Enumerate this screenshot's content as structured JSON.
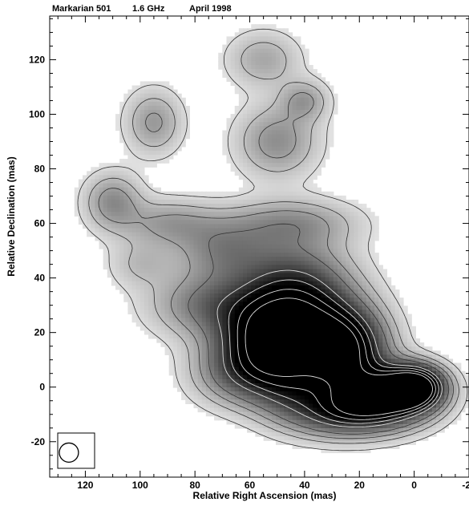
{
  "chart_data": {
    "type": "heatmap",
    "title_parts": [
      "Markarian 501",
      "1.6 GHz",
      "April 1998"
    ],
    "xlabel": "Relative Right Ascension (mas)",
    "ylabel": "Relative Declination (mas)",
    "xlim": [
      133,
      -20
    ],
    "ylim": [
      -33,
      136
    ],
    "x_ticks": [
      120,
      100,
      80,
      60,
      40,
      20,
      0,
      -20
    ],
    "y_ticks": [
      -20,
      0,
      20,
      40,
      60,
      80,
      100,
      120
    ],
    "x_tick_labels": [
      "120",
      "100",
      "80",
      "60",
      "40",
      "20",
      "0",
      "-20"
    ],
    "y_tick_labels": [
      "-20",
      "0",
      "20",
      "40",
      "60",
      "80",
      "100",
      "120"
    ],
    "grid": false,
    "colormap": "grayscale",
    "beam": {
      "x": 126,
      "y": -24,
      "diameter_mas": 7
    },
    "components": [
      {
        "x": 0,
        "y": 0,
        "intensity": 1.0,
        "sx": 7,
        "sy": 5
      },
      {
        "x": 12,
        "y": -4,
        "intensity": 0.95,
        "sx": 12,
        "sy": 7
      },
      {
        "x": 25,
        "y": 13,
        "intensity": 0.7,
        "sx": 10,
        "sy": 10
      },
      {
        "x": 40,
        "y": 18,
        "intensity": 0.6,
        "sx": 14,
        "sy": 12
      },
      {
        "x": 55,
        "y": 18,
        "intensity": 0.55,
        "sx": 12,
        "sy": 10
      },
      {
        "x": 44,
        "y": 36,
        "intensity": 0.45,
        "sx": 14,
        "sy": 12
      },
      {
        "x": 75,
        "y": 30,
        "intensity": 0.3,
        "sx": 14,
        "sy": 8
      },
      {
        "x": 62,
        "y": 5,
        "intensity": 0.35,
        "sx": 12,
        "sy": 8
      },
      {
        "x": 45,
        "y": -2,
        "intensity": 0.3,
        "sx": 10,
        "sy": 8
      },
      {
        "x": 28,
        "y": -10,
        "intensity": 0.4,
        "sx": 12,
        "sy": 6
      },
      {
        "x": 70,
        "y": 50,
        "intensity": 0.25,
        "sx": 12,
        "sy": 8
      },
      {
        "x": 90,
        "y": 60,
        "intensity": 0.2,
        "sx": 12,
        "sy": 6
      },
      {
        "x": 110,
        "y": 68,
        "intensity": 0.25,
        "sx": 7,
        "sy": 7
      },
      {
        "x": 95,
        "y": 97,
        "intensity": 0.22,
        "sx": 7,
        "sy": 8
      },
      {
        "x": 50,
        "y": 90,
        "intensity": 0.25,
        "sx": 10,
        "sy": 9
      },
      {
        "x": 40,
        "y": 105,
        "intensity": 0.2,
        "sx": 6,
        "sy": 5
      },
      {
        "x": 55,
        "y": 120,
        "intensity": 0.18,
        "sx": 9,
        "sy": 7
      },
      {
        "x": 45,
        "y": 60,
        "intensity": 0.22,
        "sx": 16,
        "sy": 6
      },
      {
        "x": 100,
        "y": 45,
        "intensity": 0.12,
        "sx": 8,
        "sy": 6
      }
    ],
    "contour_levels_dark": [
      0.05,
      0.12,
      0.2,
      0.3
    ],
    "contour_levels_light": [
      0.5,
      0.62,
      0.75,
      0.88
    ]
  }
}
